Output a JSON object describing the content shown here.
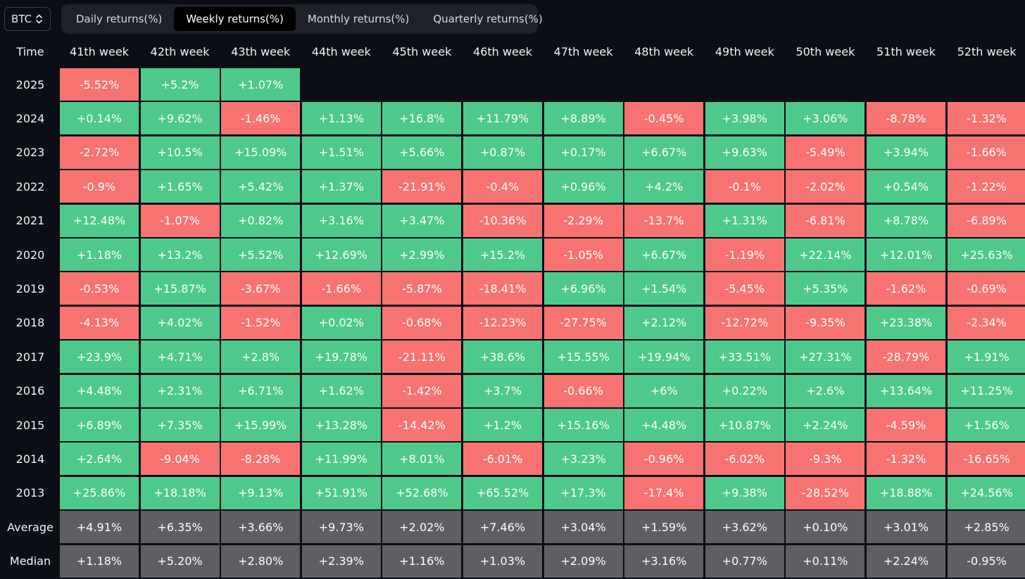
{
  "asset_selector": {
    "label": "BTC",
    "icon": "chevron-up-down-icon"
  },
  "tabs": [
    {
      "label": "Daily returns(%)",
      "active": false
    },
    {
      "label": "Weekly returns(%)",
      "active": true
    },
    {
      "label": "Monthly returns(%)",
      "active": false
    },
    {
      "label": "Quarterly returns(%)",
      "active": false
    }
  ],
  "colors": {
    "positive": "#4ec98b",
    "negative": "#f77372",
    "stat": "#5f5f63",
    "background": "#0b0e14"
  },
  "table": {
    "corner_label": "Time",
    "columns": [
      "41th week",
      "42th week",
      "43th week",
      "44th week",
      "45th week",
      "46th week",
      "47th week",
      "48th week",
      "49th week",
      "50th week",
      "51th week",
      "52th week"
    ],
    "rows": [
      {
        "label": "2025",
        "values": [
          "-5.52%",
          "+5.2%",
          "+1.07%",
          "",
          "",
          "",
          "",
          "",
          "",
          "",
          "",
          ""
        ]
      },
      {
        "label": "2024",
        "values": [
          "+0.14%",
          "+9.62%",
          "-1.46%",
          "+1.13%",
          "+16.8%",
          "+11.79%",
          "+8.89%",
          "-0.45%",
          "+3.98%",
          "+3.06%",
          "-8.78%",
          "-1.32%"
        ]
      },
      {
        "label": "2023",
        "values": [
          "-2.72%",
          "+10.5%",
          "+15.09%",
          "+1.51%",
          "+5.66%",
          "+0.87%",
          "+0.17%",
          "+6.67%",
          "+9.63%",
          "-5.49%",
          "+3.94%",
          "-1.66%"
        ]
      },
      {
        "label": "2022",
        "values": [
          "-0.9%",
          "+1.65%",
          "+5.42%",
          "+1.37%",
          "-21.91%",
          "-0.4%",
          "+0.96%",
          "+4.2%",
          "-0.1%",
          "-2.02%",
          "+0.54%",
          "-1.22%"
        ]
      },
      {
        "label": "2021",
        "values": [
          "+12.48%",
          "-1.07%",
          "+0.82%",
          "+3.16%",
          "+3.47%",
          "-10.36%",
          "-2.29%",
          "-13.7%",
          "+1.31%",
          "-6.81%",
          "+8.78%",
          "-6.89%"
        ]
      },
      {
        "label": "2020",
        "values": [
          "+1.18%",
          "+13.2%",
          "+5.52%",
          "+12.69%",
          "+2.99%",
          "+15.2%",
          "-1.05%",
          "+6.67%",
          "-1.19%",
          "+22.14%",
          "+12.01%",
          "+25.63%"
        ]
      },
      {
        "label": "2019",
        "values": [
          "-0.53%",
          "+15.87%",
          "-3.67%",
          "-1.66%",
          "-5.87%",
          "-18.41%",
          "+6.96%",
          "+1.54%",
          "-5.45%",
          "+5.35%",
          "-1.62%",
          "-0.69%"
        ]
      },
      {
        "label": "2018",
        "values": [
          "-4.13%",
          "+4.02%",
          "-1.52%",
          "+0.02%",
          "-0.68%",
          "-12.23%",
          "-27.75%",
          "+2.12%",
          "-12.72%",
          "-9.35%",
          "+23.38%",
          "-2.34%"
        ]
      },
      {
        "label": "2017",
        "values": [
          "+23.9%",
          "+4.71%",
          "+2.8%",
          "+19.78%",
          "-21.11%",
          "+38.6%",
          "+15.55%",
          "+19.94%",
          "+33.51%",
          "+27.31%",
          "-28.79%",
          "+1.91%"
        ]
      },
      {
        "label": "2016",
        "values": [
          "+4.48%",
          "+2.31%",
          "+6.71%",
          "+1.62%",
          "-1.42%",
          "+3.7%",
          "-0.66%",
          "+6%",
          "+0.22%",
          "+2.6%",
          "+13.64%",
          "+11.25%"
        ]
      },
      {
        "label": "2015",
        "values": [
          "+6.89%",
          "+7.35%",
          "+15.99%",
          "+13.28%",
          "-14.42%",
          "+1.2%",
          "+15.16%",
          "+4.48%",
          "+10.87%",
          "+2.24%",
          "-4.59%",
          "+1.56%"
        ]
      },
      {
        "label": "2014",
        "values": [
          "+2.64%",
          "-9.04%",
          "-8.28%",
          "+11.99%",
          "+8.01%",
          "-6.01%",
          "+3.23%",
          "-0.96%",
          "-6.02%",
          "-9.3%",
          "-1.32%",
          "-16.65%"
        ]
      },
      {
        "label": "2013",
        "values": [
          "+25.86%",
          "+18.18%",
          "+9.13%",
          "+51.91%",
          "+52.68%",
          "+65.52%",
          "+17.3%",
          "-17.4%",
          "+9.38%",
          "-28.52%",
          "+18.88%",
          "+24.56%"
        ]
      },
      {
        "label": "Average",
        "stat": true,
        "values": [
          "+4.91%",
          "+6.35%",
          "+3.66%",
          "+9.73%",
          "+2.02%",
          "+7.46%",
          "+3.04%",
          "+1.59%",
          "+3.62%",
          "+0.10%",
          "+3.01%",
          "+2.85%"
        ]
      },
      {
        "label": "Median",
        "stat": true,
        "values": [
          "+1.18%",
          "+5.20%",
          "+2.80%",
          "+2.39%",
          "+1.16%",
          "+1.03%",
          "+2.09%",
          "+3.16%",
          "+0.77%",
          "+0.11%",
          "+2.24%",
          "-0.95%"
        ]
      }
    ]
  }
}
